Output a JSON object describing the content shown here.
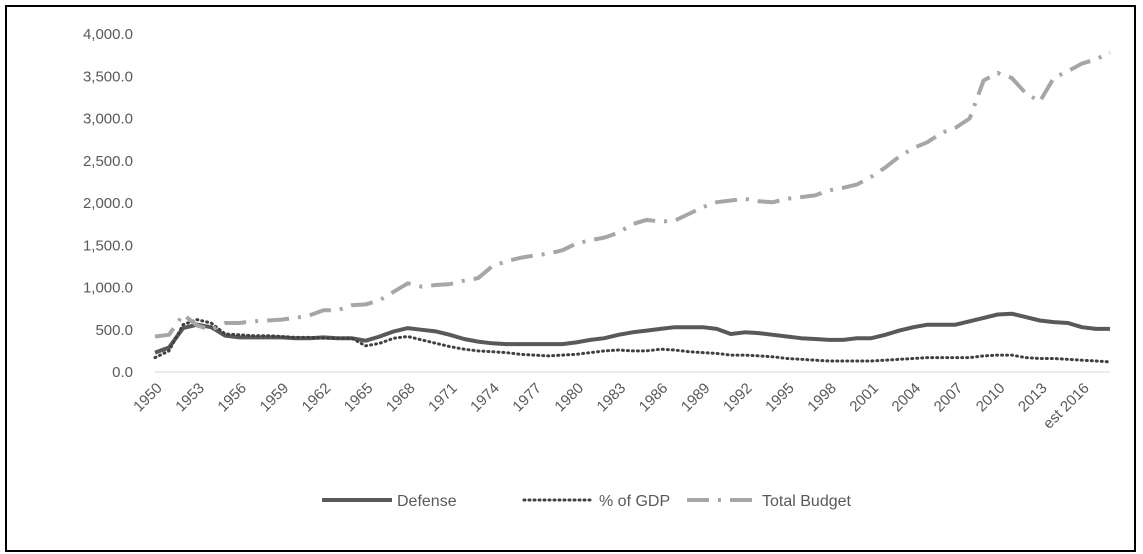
{
  "chart_data": {
    "type": "line",
    "title": "",
    "xlabel": "",
    "ylabel": "",
    "ylim": [
      0,
      4000
    ],
    "yticks": [
      "0.0",
      "500.0",
      "1,000.0",
      "1,500.0",
      "2,000.0",
      "2,500.0",
      "3,000.0",
      "3,500.0",
      "4,000.0"
    ],
    "yticks_values": [
      0,
      500,
      1000,
      1500,
      2000,
      2500,
      3000,
      3500,
      4000
    ],
    "x_tick_labels": [
      "1950",
      "1953",
      "1956",
      "1959",
      "1962",
      "1965",
      "1968",
      "1971",
      "1974",
      "1977",
      "1980",
      "1983",
      "1986",
      "1989",
      "1992",
      "1995",
      "1998",
      "2001",
      "2004",
      "2007",
      "2010",
      "2013",
      "est 2016"
    ],
    "x": [
      1950,
      1951,
      1952,
      1953,
      1954,
      1955,
      1956,
      1957,
      1958,
      1959,
      1960,
      1961,
      1962,
      1963,
      1964,
      1965,
      1966,
      1967,
      1968,
      1969,
      1970,
      1971,
      1972,
      1973,
      1974,
      1975,
      1976,
      1977,
      1978,
      1979,
      1980,
      1981,
      1982,
      1983,
      1984,
      1985,
      1986,
      1987,
      1988,
      1989,
      1990,
      1991,
      1992,
      1993,
      1994,
      1995,
      1996,
      1997,
      1998,
      1999,
      2000,
      2001,
      2002,
      2003,
      2004,
      2005,
      2006,
      2007,
      2008,
      2009,
      2010,
      2011,
      2012,
      2013,
      2014,
      2015,
      2016,
      2017,
      2018
    ],
    "grid": false,
    "legend": "bottom",
    "colors": {
      "defense": "#595959",
      "gdp": "#404040",
      "total": "#a6a6a6"
    },
    "series": [
      {
        "name": "Defense",
        "style": "solid",
        "values": [
          230,
          290,
          520,
          560,
          530,
          430,
          410,
          410,
          410,
          410,
          400,
          400,
          410,
          400,
          400,
          370,
          420,
          480,
          520,
          500,
          480,
          440,
          390,
          360,
          340,
          330,
          330,
          330,
          330,
          330,
          350,
          380,
          400,
          440,
          470,
          490,
          510,
          530,
          530,
          530,
          510,
          450,
          470,
          460,
          440,
          420,
          400,
          390,
          380,
          380,
          400,
          400,
          440,
          490,
          530,
          560,
          560,
          560,
          600,
          640,
          680,
          690,
          650,
          610,
          590,
          580,
          530,
          510,
          510
        ]
      },
      {
        "name": "% of GDP",
        "style": "dotted",
        "values": [
          170,
          250,
          560,
          620,
          580,
          450,
          440,
          430,
          430,
          420,
          410,
          410,
          400,
          400,
          400,
          310,
          340,
          400,
          420,
          380,
          340,
          300,
          270,
          250,
          240,
          230,
          210,
          200,
          190,
          200,
          210,
          230,
          250,
          260,
          250,
          250,
          270,
          260,
          240,
          230,
          220,
          200,
          200,
          190,
          180,
          160,
          150,
          140,
          130,
          130,
          130,
          130,
          140,
          150,
          160,
          170,
          170,
          170,
          170,
          190,
          200,
          200,
          170,
          160,
          160,
          150,
          140,
          130,
          120
        ]
      },
      {
        "name": "Total Budget",
        "style": "dashdot",
        "values": [
          420,
          440,
          680,
          550,
          500,
          580,
          580,
          600,
          610,
          620,
          640,
          670,
          730,
          730,
          790,
          800,
          850,
          950,
          1050,
          1010,
          1030,
          1040,
          1080,
          1110,
          1250,
          1310,
          1350,
          1380,
          1400,
          1440,
          1520,
          1560,
          1590,
          1650,
          1750,
          1800,
          1780,
          1790,
          1870,
          1950,
          2010,
          2030,
          2050,
          2020,
          2010,
          2050,
          2070,
          2090,
          2150,
          2180,
          2220,
          2310,
          2420,
          2550,
          2650,
          2720,
          2830,
          2890,
          3000,
          3450,
          3540,
          3480,
          3300,
          3200,
          3480,
          3560,
          3650,
          3700,
          3780
        ]
      }
    ]
  }
}
